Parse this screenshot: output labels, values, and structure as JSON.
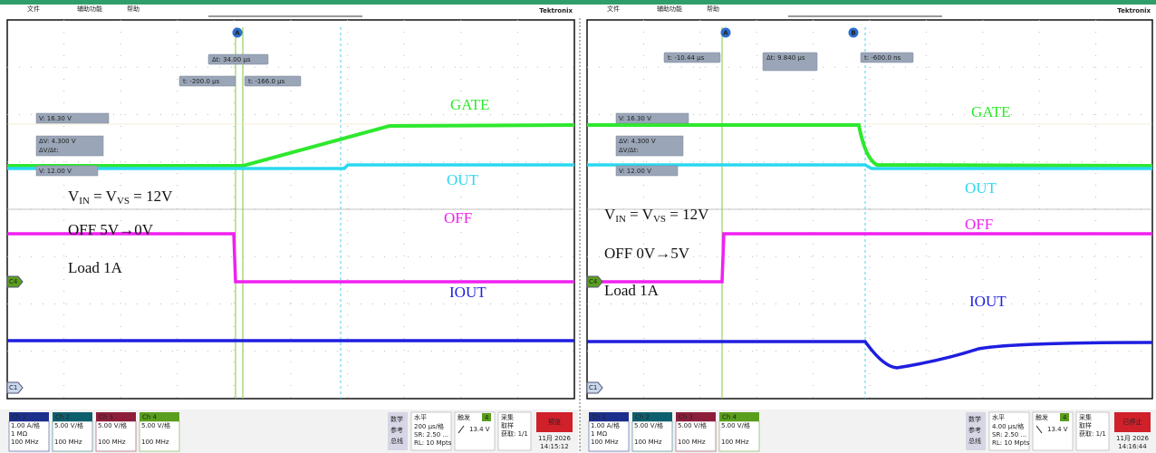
{
  "panels": [
    {
      "menu": [
        "文件",
        "辅助功能",
        "帮助"
      ],
      "brand": "Tektronix",
      "markers": [
        "A"
      ],
      "cursors": [
        "Δt: 34.00 µs",
        "t: -200.0 µs",
        "t: -166.0 µs"
      ],
      "readouts": [
        "V: 16.30 V",
        "ΔV: 4.300 V",
        "ΔV/Δt:",
        "V: 12.00 V"
      ],
      "traces": [
        "GATE",
        "OUT",
        "OFF",
        "IOUT"
      ],
      "notes": {
        "vin": [
          "V",
          "IN",
          " = V",
          "VS",
          " = 12V"
        ],
        "off": "OFF 5V→0V",
        "load": "Load 1A"
      },
      "channel_tags": [
        "C4",
        "C1"
      ],
      "channels": [
        {
          "name": "Ch 1",
          "lines": [
            "1.00 A/格",
            "1 MΩ",
            "100 MHz"
          ]
        },
        {
          "name": "Ch 2",
          "lines": [
            "5.00 V/格",
            "100 MHz"
          ]
        },
        {
          "name": "Ch 3",
          "lines": [
            "5.00 V/格",
            "100 MHz"
          ]
        },
        {
          "name": "Ch 4",
          "lines": [
            "5.00 V/格",
            "100 MHz"
          ]
        }
      ],
      "bottom_menu": [
        "数学",
        "参考",
        "总线"
      ],
      "horizontal": {
        "title": "水平",
        "lines": [
          "200 µs/格",
          "SR: 2.50 ...",
          "RL: 10 Mpts"
        ]
      },
      "trigger": {
        "title": "触发",
        "channel": "4",
        "level": "13.4 V"
      },
      "acquire": {
        "title": "采集",
        "lines": [
          "取样",
          "获取: 1/1"
        ]
      },
      "run": "预览",
      "date": "11月 2026",
      "time": "14:15:12"
    },
    {
      "menu": [
        "文件",
        "辅助功能",
        "帮助"
      ],
      "brand": "Tektronix",
      "markers": [
        "A",
        "B"
      ],
      "cursors": [
        "t: -10.44 µs",
        "Δt: 9.840 µs",
        "t: -600.0 ns"
      ],
      "readouts": [
        "V: 16.30 V",
        "ΔV: 4.300 V",
        "ΔV/Δt:",
        "V: 12.00 V"
      ],
      "traces": [
        "GATE",
        "OUT",
        "OFF",
        "IOUT"
      ],
      "notes": {
        "vin": [
          "V",
          "IN",
          " = V",
          "VS",
          " = 12V"
        ],
        "off": "OFF 0V→5V",
        "load": "Load 1A"
      },
      "channel_tags": [
        "C4",
        "C1"
      ],
      "channels": [
        {
          "name": "Ch 1",
          "lines": [
            "1.00 A/格",
            "1 MΩ",
            "100 MHz"
          ]
        },
        {
          "name": "Ch 2",
          "lines": [
            "5.00 V/格",
            "100 MHz"
          ]
        },
        {
          "name": "Ch 3",
          "lines": [
            "5.00 V/格",
            "100 MHz"
          ]
        },
        {
          "name": "Ch 4",
          "lines": [
            "5.00 V/格",
            "100 MHz"
          ]
        }
      ],
      "bottom_menu": [
        "数学",
        "参考",
        "总线"
      ],
      "horizontal": {
        "title": "水平",
        "lines": [
          "4.00 µs/格",
          "SR: 2.50 ...",
          "RL: 10 Mpts"
        ]
      },
      "trigger": {
        "title": "触发",
        "channel": "4",
        "level": "13.4 V"
      },
      "acquire": {
        "title": "采集",
        "lines": [
          "取样",
          "获取: 1/1"
        ]
      },
      "run": "已停止",
      "date": "11月 2026",
      "time": "14:16:44"
    }
  ]
}
